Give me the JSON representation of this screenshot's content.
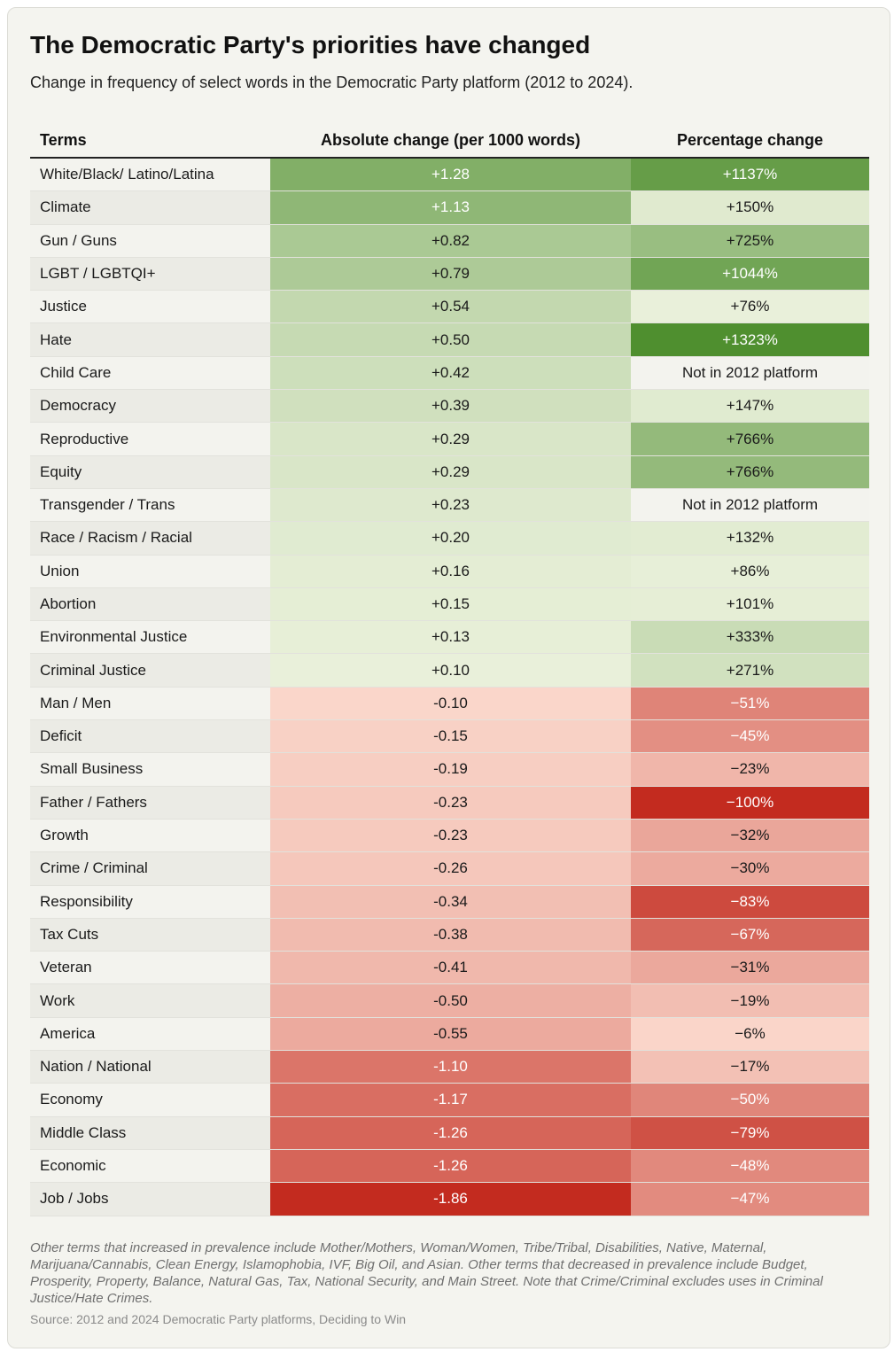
{
  "title": "The Democratic Party's priorities have changed",
  "subtitle": "Change in frequency of select words in the Democratic Party platform (2012 to 2024).",
  "columns": {
    "terms": "Terms",
    "absolute": "Absolute change (per 1000 words)",
    "percentage": "Percentage change"
  },
  "chart_data": {
    "type": "table",
    "title": "The Democratic Party's priorities have changed",
    "columns": [
      "Terms",
      "Absolute change (per 1000 words)",
      "Percentage change"
    ],
    "rows": [
      {
        "term": "White/Black/ Latino/Latina",
        "abs": 1.28,
        "abs_label": "+1.28",
        "pct": 1137,
        "pct_label": "+1137%"
      },
      {
        "term": "Climate",
        "abs": 1.13,
        "abs_label": "+1.13",
        "pct": 150,
        "pct_label": "+150%"
      },
      {
        "term": "Gun / Guns",
        "abs": 0.82,
        "abs_label": "+0.82",
        "pct": 725,
        "pct_label": "+725%"
      },
      {
        "term": "LGBT / LGBTQI+",
        "abs": 0.79,
        "abs_label": "+0.79",
        "pct": 1044,
        "pct_label": "+1044%"
      },
      {
        "term": "Justice",
        "abs": 0.54,
        "abs_label": "+0.54",
        "pct": 76,
        "pct_label": "+76%"
      },
      {
        "term": "Hate",
        "abs": 0.5,
        "abs_label": "+0.50",
        "pct": 1323,
        "pct_label": "+1323%"
      },
      {
        "term": "Child Care",
        "abs": 0.42,
        "abs_label": "+0.42",
        "pct": null,
        "pct_label": "Not in 2012 platform"
      },
      {
        "term": "Democracy",
        "abs": 0.39,
        "abs_label": "+0.39",
        "pct": 147,
        "pct_label": "+147%"
      },
      {
        "term": "Reproductive",
        "abs": 0.29,
        "abs_label": "+0.29",
        "pct": 766,
        "pct_label": "+766%"
      },
      {
        "term": "Equity",
        "abs": 0.29,
        "abs_label": "+0.29",
        "pct": 766,
        "pct_label": "+766%"
      },
      {
        "term": "Transgender / Trans",
        "abs": 0.23,
        "abs_label": "+0.23",
        "pct": null,
        "pct_label": "Not in 2012 platform"
      },
      {
        "term": "Race / Racism / Racial",
        "abs": 0.2,
        "abs_label": "+0.20",
        "pct": 132,
        "pct_label": "+132%"
      },
      {
        "term": "Union",
        "abs": 0.16,
        "abs_label": "+0.16",
        "pct": 86,
        "pct_label": "+86%"
      },
      {
        "term": "Abortion",
        "abs": 0.15,
        "abs_label": "+0.15",
        "pct": 101,
        "pct_label": "+101%"
      },
      {
        "term": "Environmental Justice",
        "abs": 0.13,
        "abs_label": "+0.13",
        "pct": 333,
        "pct_label": "+333%"
      },
      {
        "term": "Criminal Justice",
        "abs": 0.1,
        "abs_label": "+0.10",
        "pct": 271,
        "pct_label": "+271%"
      },
      {
        "term": "Man / Men",
        "abs": -0.1,
        "abs_label": "-0.10",
        "pct": -51,
        "pct_label": "−51%"
      },
      {
        "term": "Deficit",
        "abs": -0.15,
        "abs_label": "-0.15",
        "pct": -45,
        "pct_label": "−45%"
      },
      {
        "term": "Small Business",
        "abs": -0.19,
        "abs_label": "-0.19",
        "pct": -23,
        "pct_label": "−23%"
      },
      {
        "term": "Father / Fathers",
        "abs": -0.23,
        "abs_label": "-0.23",
        "pct": -100,
        "pct_label": "−100%"
      },
      {
        "term": "Growth",
        "abs": -0.23,
        "abs_label": "-0.23",
        "pct": -32,
        "pct_label": "−32%"
      },
      {
        "term": "Crime / Criminal",
        "abs": -0.26,
        "abs_label": "-0.26",
        "pct": -30,
        "pct_label": "−30%"
      },
      {
        "term": "Responsibility",
        "abs": -0.34,
        "abs_label": "-0.34",
        "pct": -83,
        "pct_label": "−83%"
      },
      {
        "term": "Tax Cuts",
        "abs": -0.38,
        "abs_label": "-0.38",
        "pct": -67,
        "pct_label": "−67%"
      },
      {
        "term": "Veteran",
        "abs": -0.41,
        "abs_label": "-0.41",
        "pct": -31,
        "pct_label": "−31%"
      },
      {
        "term": "Work",
        "abs": -0.5,
        "abs_label": "-0.50",
        "pct": -19,
        "pct_label": "−19%"
      },
      {
        "term": "America",
        "abs": -0.55,
        "abs_label": "-0.55",
        "pct": -6,
        "pct_label": "−6%"
      },
      {
        "term": "Nation / National",
        "abs": -1.1,
        "abs_label": "-1.10",
        "pct": -17,
        "pct_label": "−17%"
      },
      {
        "term": "Economy",
        "abs": -1.17,
        "abs_label": "-1.17",
        "pct": -50,
        "pct_label": "−50%"
      },
      {
        "term": "Middle Class",
        "abs": -1.26,
        "abs_label": "-1.26",
        "pct": -79,
        "pct_label": "−79%"
      },
      {
        "term": "Economic",
        "abs": -1.26,
        "abs_label": "-1.26",
        "pct": -48,
        "pct_label": "−48%"
      },
      {
        "term": "Job / Jobs",
        "abs": -1.86,
        "abs_label": "-1.86",
        "pct": -47,
        "pct_label": "−47%"
      }
    ]
  },
  "colors": {
    "positive_strong": "#4f8f2f",
    "positive_light": "#f2f6e4",
    "negative_strong": "#c32b1f",
    "negative_light": "#fde0d4",
    "neutral": "#f3f3ee"
  },
  "footnote": "Other terms that increased in prevalence include Mother/Mothers, Woman/Women, Tribe/Tribal, Disabilities, Native, Maternal, Marijuana/Cannabis, Clean Energy, Islamophobia, IVF, Big Oil, and Asian. Other terms that decreased in prevalence include Budget, Prosperity, Property, Balance, Natural Gas, Tax, National Security, and Main Street. Note that Crime/Criminal excludes uses in Criminal Justice/Hate Crimes.",
  "source": "Source: 2012 and 2024 Democratic Party platforms, Deciding to Win"
}
